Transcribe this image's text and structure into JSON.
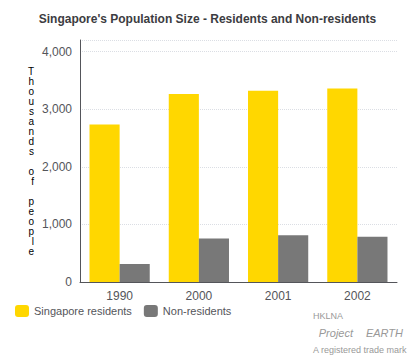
{
  "chart_data": {
    "type": "bar",
    "title": "Singapore's Population Size - Residents and Non-residents",
    "ylabel": "Thousands of people",
    "categories": [
      "1990",
      "2000",
      "2001",
      "2002"
    ],
    "series": [
      {
        "name": "Singapore residents",
        "color": "#FFD700",
        "values": [
          2735,
          3263,
          3319,
          3358
        ]
      },
      {
        "name": "Non-residents",
        "color": "#787878",
        "values": [
          311,
          755,
          812,
          784
        ]
      }
    ],
    "ylim": [
      0,
      4200
    ],
    "yticks": [
      0,
      {
        "value": 1000,
        "label": "1,000"
      },
      {
        "value": 2000,
        "label": "2,000"
      },
      {
        "value": 3000,
        "label": "3,000"
      },
      {
        "value": 4000,
        "label": "4,000"
      }
    ],
    "grid": true,
    "legend": "lower left",
    "annotations": [
      "HKLNA",
      "Project",
      "EARTH",
      "A registered trade mark"
    ]
  }
}
